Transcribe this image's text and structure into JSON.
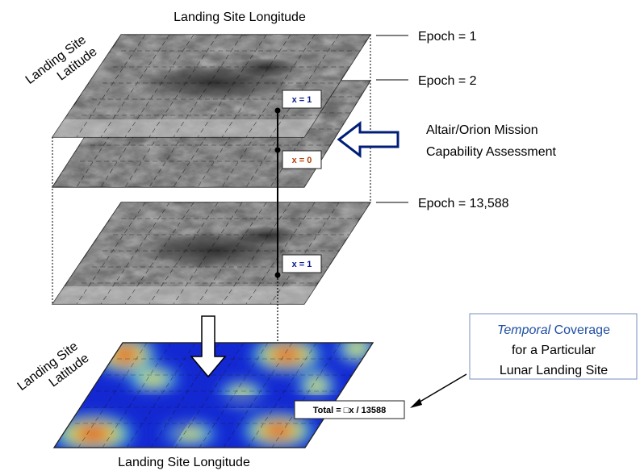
{
  "axes": {
    "top_longitude": "Landing Site Longitude",
    "top_latitude_line1": "Landing Site",
    "top_latitude_line2": "Latitude",
    "bottom_longitude": "Landing Site Longitude",
    "bottom_latitude_line1": "Landing Site",
    "bottom_latitude_line2": "Latitude"
  },
  "epochs": {
    "first": "Epoch = 1",
    "second": "Epoch = 2",
    "last": "Epoch = 13,588"
  },
  "assessment": {
    "line1": "Altair/Orion Mission",
    "line2": "Capability Assessment"
  },
  "markers": {
    "epoch1": "x = 1",
    "epoch2": "x = 0",
    "epoch_last": "x = 1"
  },
  "total_box": "Total = □x / 13588",
  "callout": {
    "line1_italic": "Temporal",
    "line1_rest": " Coverage",
    "line2": "for a Particular",
    "line3": "Lunar Landing Site"
  },
  "colors": {
    "arrow_blue": "#001e78",
    "marker_blue": "#0a1a8a",
    "marker_red": "#b5400a",
    "callout_text": "#1f4ea3",
    "callout_border": "#7a8fbf",
    "heatmap_base": "#1428d2"
  },
  "icons": {
    "hollow_left_arrow": "hollow-left-arrow-icon",
    "hollow_down_arrow": "hollow-down-arrow-icon"
  }
}
